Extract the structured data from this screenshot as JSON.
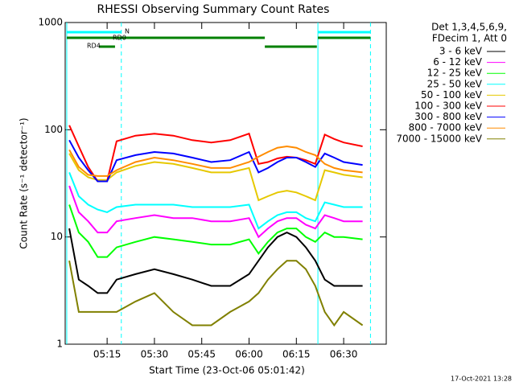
{
  "chart_data": {
    "type": "line",
    "title": "RHESSI Observing Summary Count Rates",
    "xlabel": "Start Time (23-Oct-06 05:01:42)",
    "ylabel": "Count Rate (s⁻¹ detector⁻¹)",
    "legend_header": [
      "Det 1,3,4,5,6,9,",
      "FDecim 1, Att 0"
    ],
    "footer": "17-Oct-2021 13:28",
    "log_y": true,
    "xlim": [
      "05:01:42",
      "06:43:30"
    ],
    "xticks": [
      "05:15",
      "05:30",
      "05:45",
      "06:00",
      "06:15",
      "06:30"
    ],
    "ylim": [
      1,
      1000
    ],
    "yticks": [
      1,
      10,
      100,
      1000
    ],
    "x": [
      "05:03",
      "05:06",
      "05:09",
      "05:12",
      "05:15",
      "05:18",
      "05:24",
      "05:30",
      "05:36",
      "05:42",
      "05:48",
      "05:54",
      "06:00",
      "06:03",
      "06:06",
      "06:09",
      "06:12",
      "06:15",
      "06:18",
      "06:21",
      "06:24",
      "06:27",
      "06:30",
      "06:36"
    ],
    "series": [
      {
        "name": "3 - 6 keV",
        "color": "#000000",
        "values": [
          12,
          4,
          3.5,
          3,
          3,
          4,
          4.5,
          5,
          4.5,
          4,
          3.5,
          3.5,
          4.5,
          6,
          8,
          10,
          11,
          10,
          8,
          6,
          4,
          3.5,
          3.5,
          3.5
        ]
      },
      {
        "name": "6 - 12 keV",
        "color": "#ff00ff",
        "values": [
          30,
          17,
          14,
          11,
          11,
          14,
          15,
          16,
          15,
          15,
          14,
          14,
          15,
          10,
          12,
          14,
          15,
          15,
          13,
          12,
          16,
          15,
          14,
          14
        ]
      },
      {
        "name": "12 - 25 keV",
        "color": "#00ff00",
        "values": [
          20,
          11,
          9,
          6.5,
          6.5,
          8,
          9,
          10,
          9.5,
          9,
          8.5,
          8.5,
          9.5,
          7,
          9,
          11,
          12,
          12,
          10,
          9,
          11,
          10,
          10,
          9.5
        ]
      },
      {
        "name": "25 - 50 keV",
        "color": "#00ffff",
        "values": [
          40,
          24,
          20,
          18,
          17,
          19,
          20,
          20,
          20,
          19,
          19,
          19,
          20,
          12,
          14,
          16,
          17,
          17,
          15,
          14,
          21,
          20,
          19,
          19
        ]
      },
      {
        "name": "50 - 100 keV",
        "color": "#e6c800",
        "values": [
          60,
          42,
          36,
          34,
          34,
          40,
          46,
          50,
          48,
          44,
          40,
          40,
          44,
          22,
          24,
          26,
          27,
          26,
          24,
          22,
          42,
          40,
          38,
          36
        ]
      },
      {
        "name": "100 - 300 keV",
        "color": "#ff0000",
        "values": [
          110,
          70,
          45,
          33,
          33,
          78,
          88,
          92,
          88,
          80,
          76,
          80,
          92,
          48,
          50,
          54,
          56,
          55,
          52,
          48,
          90,
          82,
          76,
          70
        ]
      },
      {
        "name": "300 - 800 keV",
        "color": "#0000ff",
        "values": [
          80,
          55,
          42,
          33,
          33,
          52,
          58,
          62,
          60,
          55,
          50,
          52,
          62,
          40,
          44,
          50,
          55,
          55,
          50,
          45,
          60,
          55,
          50,
          47
        ]
      },
      {
        "name": "800 - 7000 keV",
        "color": "#ff8c00",
        "values": [
          65,
          45,
          38,
          37,
          37,
          42,
          50,
          55,
          52,
          48,
          44,
          44,
          50,
          56,
          62,
          68,
          70,
          68,
          62,
          58,
          48,
          44,
          42,
          40
        ]
      },
      {
        "name": "7000 - 15000 keV",
        "color": "#808000",
        "values": [
          6,
          2,
          2,
          2,
          2,
          2,
          2.5,
          3,
          2,
          1.5,
          1.5,
          2,
          2.5,
          3,
          4,
          5,
          6,
          6,
          5,
          3.5,
          2,
          1.5,
          2,
          1.5
        ]
      }
    ],
    "flags": [
      {
        "label": "N",
        "color": "#00ffff",
        "intervals": [
          [
            "05:02:12",
            "05:19:30"
          ],
          [
            "06:21:50",
            "06:38:30"
          ]
        ]
      },
      {
        "label": "RD0",
        "color": "#008000",
        "intervals": [
          [
            "05:02:12",
            "06:05:00"
          ],
          [
            "06:21:50",
            "06:38:30"
          ]
        ]
      },
      {
        "label": "RD4",
        "color": "#008000",
        "intervals": [
          [
            "05:12:30",
            "05:17:30"
          ],
          [
            "06:05:00",
            "06:21:30"
          ]
        ]
      }
    ],
    "markers": {
      "color": "#00ffff",
      "solid": [
        "05:02:12",
        "06:21:50"
      ],
      "dashed": [
        "05:19:30",
        "06:38:30"
      ]
    }
  }
}
